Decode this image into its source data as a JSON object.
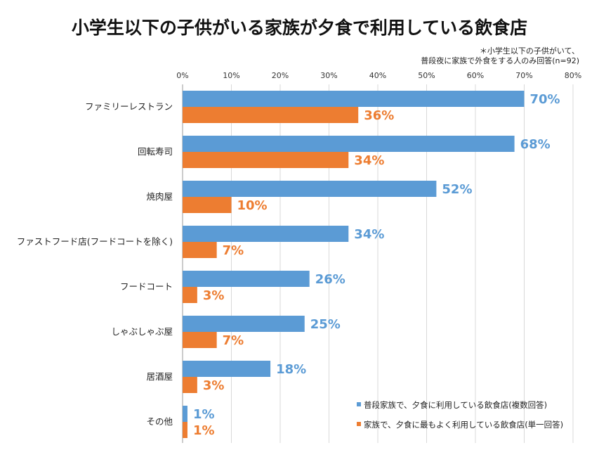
{
  "title": "小学生以下の子供がいる家族が夕食で利用している飲食店",
  "note": {
    "line1": "＊小学生以下の子供がいて、",
    "line2": "普段夜に家族で外食をする人のみ回答(n=92)"
  },
  "chart_data": {
    "type": "bar",
    "orientation": "horizontal",
    "title": "小学生以下の子供がいる家族が夕食で利用している飲食店",
    "categories": [
      "ファミリーレストラン",
      "回転寿司",
      "焼肉屋",
      "ファストフード店(フードコートを除く)",
      "フードコート",
      "しゃぶしゃぶ屋",
      "居酒屋",
      "その他"
    ],
    "series": [
      {
        "name": "普段家族で、夕食に利用している飲食店(複数回答)",
        "color": "#5b9bd5",
        "values": [
          70,
          68,
          52,
          34,
          26,
          25,
          18,
          1
        ]
      },
      {
        "name": "家族で、夕食に最もよく利用している飲食店(単一回答)",
        "color": "#ed7d31",
        "values": [
          36,
          34,
          10,
          7,
          3,
          7,
          3,
          1
        ]
      }
    ],
    "xlim": [
      0,
      80
    ],
    "ticks": [
      "0%",
      "10%",
      "20%",
      "30%",
      "40%",
      "50%",
      "60%",
      "70%",
      "80%"
    ],
    "legend_position": "bottom-right",
    "value_suffix": "%"
  }
}
